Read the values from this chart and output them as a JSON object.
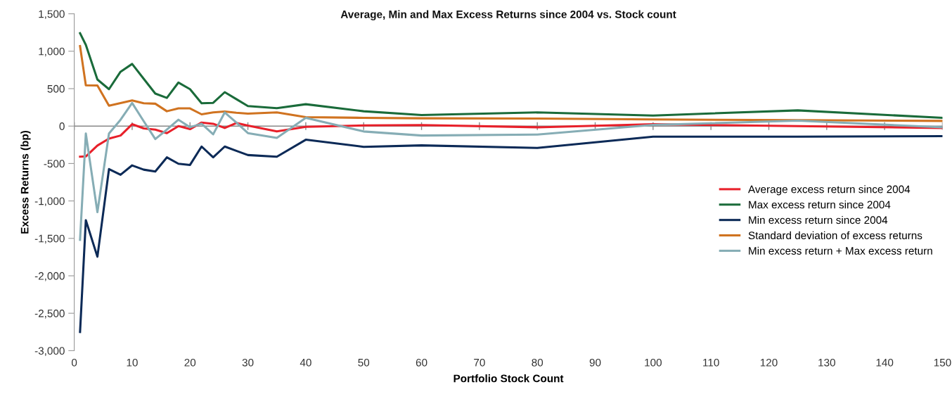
{
  "chart_data": {
    "type": "line",
    "title": "Average, Min and Max Excess Returns since 2004 vs. Stock count",
    "xlabel": "Portfolio Stock Count",
    "ylabel": "Excess Returns (bp)",
    "x": [
      1,
      2,
      4,
      6,
      8,
      10,
      12,
      14,
      16,
      18,
      20,
      22,
      24,
      26,
      28,
      30,
      35,
      40,
      50,
      60,
      80,
      100,
      125,
      150
    ],
    "series": [
      {
        "name": "Average excess return since 2004",
        "color": "#e8202a",
        "values": [
          -409,
          -405,
          -260,
          -167,
          -126,
          25,
          -31,
          -47,
          -94,
          0,
          -41,
          47,
          31,
          -25,
          41,
          6,
          -72,
          -9,
          9,
          13,
          -16,
          25,
          0,
          -25
        ]
      },
      {
        "name": "Max excess return since 2004",
        "color": "#1a6b3a",
        "values": [
          1240,
          1085,
          622,
          493,
          726,
          830,
          632,
          434,
          377,
          582,
          493,
          305,
          310,
          453,
          360,
          267,
          239,
          292,
          198,
          148,
          182,
          141,
          210,
          110
        ]
      },
      {
        "name": "Min excess return since 2004",
        "color": "#0c2a57",
        "values": [
          -2750,
          -1257,
          -1745,
          -575,
          -650,
          -525,
          -582,
          -607,
          -418,
          -503,
          -519,
          -273,
          -418,
          -273,
          -330,
          -387,
          -409,
          -182,
          -277,
          -258,
          -292,
          -141,
          -141,
          -135
        ]
      },
      {
        "name": "Standard deviation of excess returns",
        "color": "#d07320",
        "values": [
          1069,
          544,
          543,
          273,
          308,
          343,
          305,
          299,
          198,
          236,
          236,
          157,
          182,
          195,
          179,
          167,
          182,
          120,
          110,
          104,
          100,
          88,
          79,
          69
        ]
      },
      {
        "name": "Min excess return + Max excess return",
        "color": "#86adb5",
        "values": [
          -1520,
          -100,
          -1150,
          -100,
          85,
          308,
          65,
          -173,
          -47,
          85,
          -16,
          31,
          -110,
          182,
          47,
          -94,
          -157,
          110,
          -72,
          -126,
          -113,
          16,
          72,
          -16
        ]
      }
    ],
    "xlim": [
      0,
      150
    ],
    "xticks": [
      0,
      10,
      20,
      30,
      40,
      50,
      60,
      70,
      80,
      90,
      100,
      110,
      120,
      130,
      140,
      150
    ],
    "ylim": [
      -3000,
      1500
    ],
    "yticks": [
      {
        "value": -3000,
        "label": "-3,000"
      },
      {
        "value": -2500,
        "label": "-2,500"
      },
      {
        "value": -2000,
        "label": "-2,000"
      },
      {
        "value": -1500,
        "label": "-1,500"
      },
      {
        "value": -1000,
        "label": "-1,000"
      },
      {
        "value": -500,
        "label": "-500"
      },
      {
        "value": 0,
        "label": "0"
      },
      {
        "value": 500,
        "label": "500"
      },
      {
        "value": 1000,
        "label": "1,000"
      },
      {
        "value": 1500,
        "label": "1,500"
      }
    ],
    "ref_lines": [
      {
        "axis": "y",
        "value": 0,
        "color": "#888888"
      }
    ],
    "grid": false,
    "legend": "bottom right",
    "marker": "none",
    "line_style": "solid"
  }
}
